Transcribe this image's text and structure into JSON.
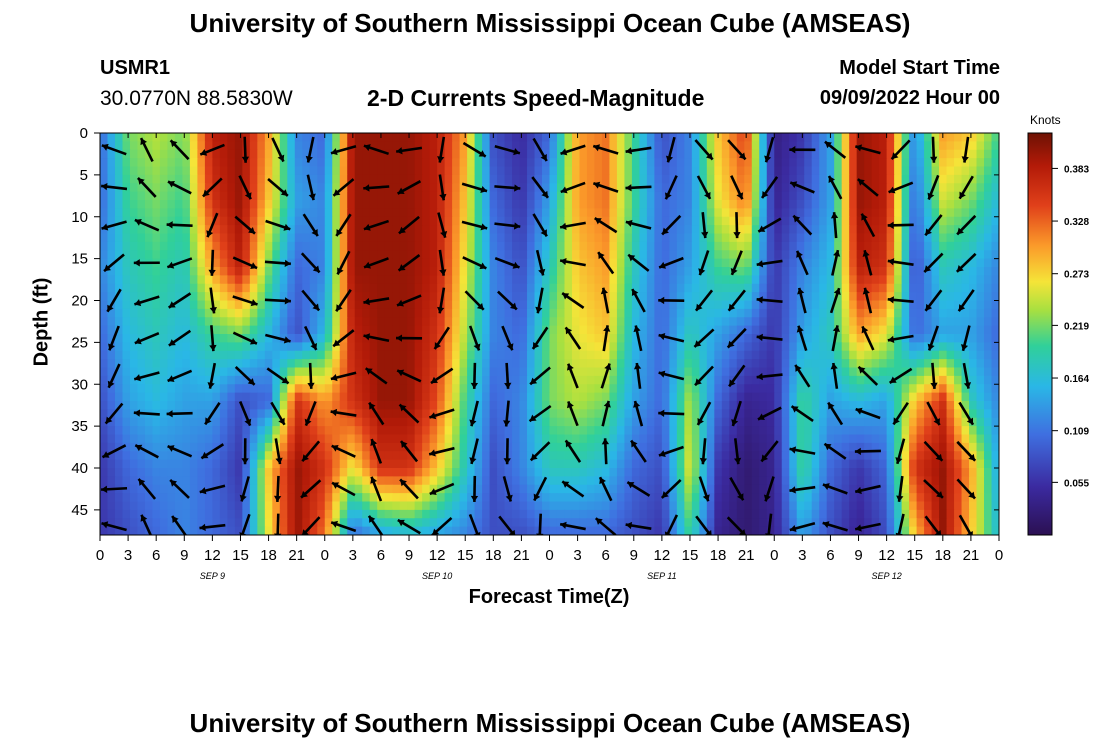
{
  "header": {
    "title": "University of Southern Mississippi Ocean Cube (AMSEAS)",
    "station": "USMR1",
    "coordinates": "30.0770N  88.5830W",
    "subtitle": "2-D Currents Speed-Magnitude",
    "model_start_label": "Model Start Time",
    "model_start_value": "09/09/2022 Hour 00"
  },
  "footer": {
    "title": "University of Southern Mississippi Ocean Cube (AMSEAS)"
  },
  "chart_data": {
    "type": "heatmap",
    "title": "2-D Currents Speed-Magnitude",
    "xlabel": "Forecast Time(Z)",
    "ylabel": "Depth (ft)",
    "x_ticks": [
      "0",
      "3",
      "6",
      "9",
      "12",
      "15",
      "18",
      "21",
      "0",
      "3",
      "6",
      "9",
      "12",
      "15",
      "18",
      "21",
      "0",
      "3",
      "6",
      "9",
      "12",
      "15",
      "18",
      "21",
      "0",
      "3",
      "6",
      "9",
      "12",
      "15",
      "18",
      "21",
      "0"
    ],
    "date_labels": [
      "SEP 9",
      "SEP 10",
      "SEP 11",
      "SEP 12"
    ],
    "y_ticks": [
      0,
      5,
      10,
      15,
      20,
      25,
      30,
      35,
      40,
      45
    ],
    "ylim": [
      0,
      48
    ],
    "xlim_hours": [
      0,
      96
    ],
    "colorbar": {
      "units": "Knots",
      "ticks": [
        "0.383",
        "0.328",
        "0.273",
        "0.219",
        "0.164",
        "0.109",
        "0.055"
      ],
      "range": [
        0,
        0.42
      ]
    },
    "depths_ft": [
      0,
      8,
      16,
      24,
      32,
      40,
      48
    ],
    "speed_knots": {
      "hours": [
        0,
        3,
        6,
        9,
        12,
        15,
        18,
        21,
        24,
        27,
        30,
        33,
        36,
        39,
        42,
        45,
        48,
        51,
        54,
        57,
        60,
        63,
        66,
        69,
        72,
        75,
        78,
        81,
        84,
        87,
        90,
        93,
        96
      ],
      "rows": [
        [
          0.1,
          0.22,
          0.24,
          0.22,
          0.38,
          0.4,
          0.3,
          0.12,
          0.1,
          0.4,
          0.4,
          0.4,
          0.38,
          0.3,
          0.08,
          0.05,
          0.1,
          0.3,
          0.32,
          0.2,
          0.08,
          0.12,
          0.28,
          0.35,
          0.03,
          0.06,
          0.14,
          0.4,
          0.38,
          0.12,
          0.3,
          0.28,
          0.2
        ],
        [
          0.1,
          0.2,
          0.22,
          0.2,
          0.36,
          0.4,
          0.28,
          0.14,
          0.12,
          0.4,
          0.4,
          0.4,
          0.38,
          0.28,
          0.1,
          0.06,
          0.14,
          0.3,
          0.32,
          0.2,
          0.1,
          0.12,
          0.26,
          0.32,
          0.04,
          0.08,
          0.14,
          0.4,
          0.38,
          0.1,
          0.25,
          0.22,
          0.16
        ],
        [
          0.12,
          0.18,
          0.2,
          0.18,
          0.3,
          0.38,
          0.22,
          0.1,
          0.12,
          0.4,
          0.4,
          0.4,
          0.38,
          0.26,
          0.12,
          0.08,
          0.18,
          0.28,
          0.3,
          0.18,
          0.1,
          0.14,
          0.2,
          0.22,
          0.06,
          0.12,
          0.16,
          0.38,
          0.36,
          0.08,
          0.18,
          0.16,
          0.12
        ],
        [
          0.1,
          0.16,
          0.18,
          0.16,
          0.2,
          0.22,
          0.16,
          0.08,
          0.16,
          0.38,
          0.4,
          0.4,
          0.36,
          0.24,
          0.12,
          0.1,
          0.22,
          0.26,
          0.28,
          0.16,
          0.1,
          0.18,
          0.14,
          0.1,
          0.06,
          0.14,
          0.18,
          0.3,
          0.26,
          0.1,
          0.14,
          0.14,
          0.1
        ],
        [
          0.08,
          0.14,
          0.16,
          0.14,
          0.14,
          0.08,
          0.1,
          0.36,
          0.3,
          0.36,
          0.4,
          0.4,
          0.34,
          0.2,
          0.1,
          0.12,
          0.22,
          0.24,
          0.22,
          0.14,
          0.1,
          0.24,
          0.1,
          0.04,
          0.05,
          0.2,
          0.14,
          0.16,
          0.14,
          0.28,
          0.36,
          0.18,
          0.12
        ],
        [
          0.06,
          0.1,
          0.12,
          0.12,
          0.1,
          0.06,
          0.28,
          0.4,
          0.36,
          0.26,
          0.36,
          0.36,
          0.28,
          0.18,
          0.08,
          0.12,
          0.18,
          0.18,
          0.16,
          0.1,
          0.08,
          0.26,
          0.06,
          0.02,
          0.04,
          0.2,
          0.1,
          0.06,
          0.1,
          0.36,
          0.4,
          0.3,
          0.14
        ],
        [
          0.06,
          0.08,
          0.1,
          0.12,
          0.1,
          0.08,
          0.26,
          0.4,
          0.32,
          0.1,
          0.14,
          0.16,
          0.14,
          0.12,
          0.08,
          0.08,
          0.1,
          0.1,
          0.1,
          0.08,
          0.06,
          0.2,
          0.04,
          0.02,
          0.04,
          0.14,
          0.08,
          0.04,
          0.08,
          0.28,
          0.4,
          0.28,
          0.16
        ]
      ]
    }
  }
}
